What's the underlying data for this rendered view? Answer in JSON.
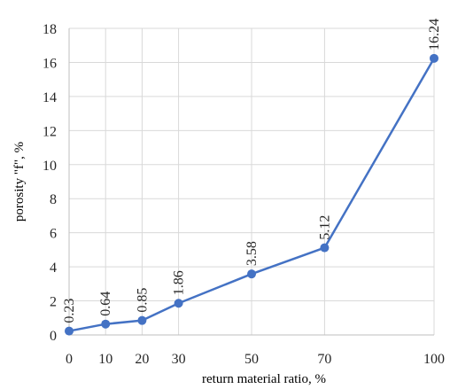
{
  "chart_data": {
    "type": "line",
    "title": "",
    "xlabel": "return material ratio, %",
    "ylabel": "porosity \"f\", %",
    "x": [
      0,
      10,
      20,
      30,
      50,
      70,
      100
    ],
    "x_tick_labels": [
      "0",
      "10",
      "20",
      "30",
      "50",
      "70",
      "100"
    ],
    "y_ticks": [
      0,
      2,
      4,
      6,
      8,
      10,
      12,
      14,
      16,
      18
    ],
    "ylim": [
      0,
      18
    ],
    "grid": true,
    "legend": "none",
    "series": [
      {
        "values": [
          0.23,
          0.64,
          0.85,
          1.86,
          3.58,
          5.12,
          16.24
        ],
        "data_labels": [
          "0.23",
          "0.64",
          "0.85",
          "1.86",
          "3.58",
          "5.12",
          "16.24"
        ],
        "color": "#4472c4"
      }
    ]
  }
}
